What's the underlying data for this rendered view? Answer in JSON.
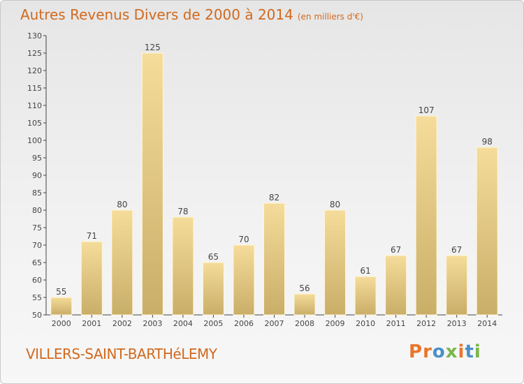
{
  "page": {
    "title": "Autres Revenus Divers de 2000 à 2014",
    "unit": "(en milliers d'€)",
    "commune": "VILLERS-SAINT-BARTHéLEMY",
    "logo_text": "Proxiti",
    "logo_colors": [
      "#e8762b",
      "#e8762b",
      "#4a90c8",
      "#7ab648",
      "#e8762b",
      "#4a90c8",
      "#7ab648"
    ],
    "title_color": "#d2691e"
  },
  "chart_data": {
    "type": "bar",
    "categories": [
      "2000",
      "2001",
      "2002",
      "2003",
      "2004",
      "2005",
      "2006",
      "2007",
      "2008",
      "2009",
      "2010",
      "2011",
      "2012",
      "2013",
      "2014"
    ],
    "values": [
      55,
      71,
      80,
      125,
      78,
      65,
      70,
      82,
      56,
      80,
      61,
      67,
      107,
      67,
      98
    ],
    "ylim": [
      50,
      130
    ],
    "ytick_step": 5,
    "grid": false,
    "bar_color_light": "#f5dc9a",
    "bar_color_dark": "#c9ae68"
  }
}
